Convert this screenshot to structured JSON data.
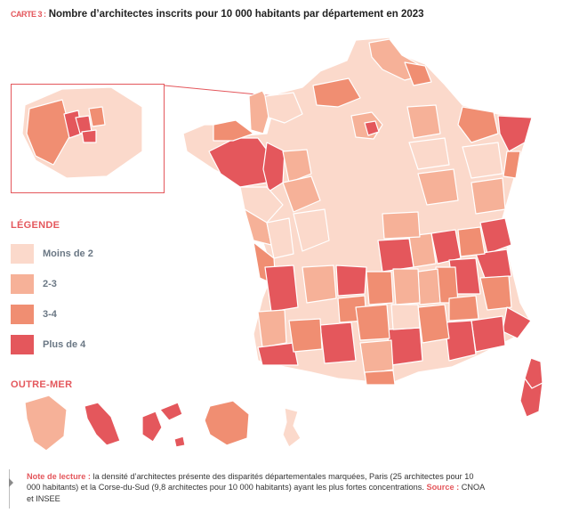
{
  "header": {
    "map_number": "CARTE 3 :",
    "title": "Nombre d’architectes inscrits pour 10 000 habitants par département en 2023"
  },
  "legend": {
    "heading": "LÉGENDE",
    "items": [
      {
        "label": "Moins de 2",
        "color": "#fbd9cb"
      },
      {
        "label": "2-3",
        "color": "#f6b198"
      },
      {
        "label": "3-4",
        "color": "#f08e72"
      },
      {
        "label": "Plus de 4",
        "color": "#e4575c"
      }
    ]
  },
  "overseas": {
    "heading": "OUTRE-MER"
  },
  "colors": {
    "accent": "#e4575c",
    "border": "#ffffff"
  },
  "note": {
    "label": "Note de lecture :",
    "text": " la densité d’architectes présente des disparités départementales marquées, Paris (25 architectes pour 10 000 habitants) et la Corse-du-Sud (9,8 architectes pour 10 000 habitants) ayant les plus fortes concentrations. ",
    "source_label": "Source :",
    "source_text": " CNOA et INSEE"
  }
}
